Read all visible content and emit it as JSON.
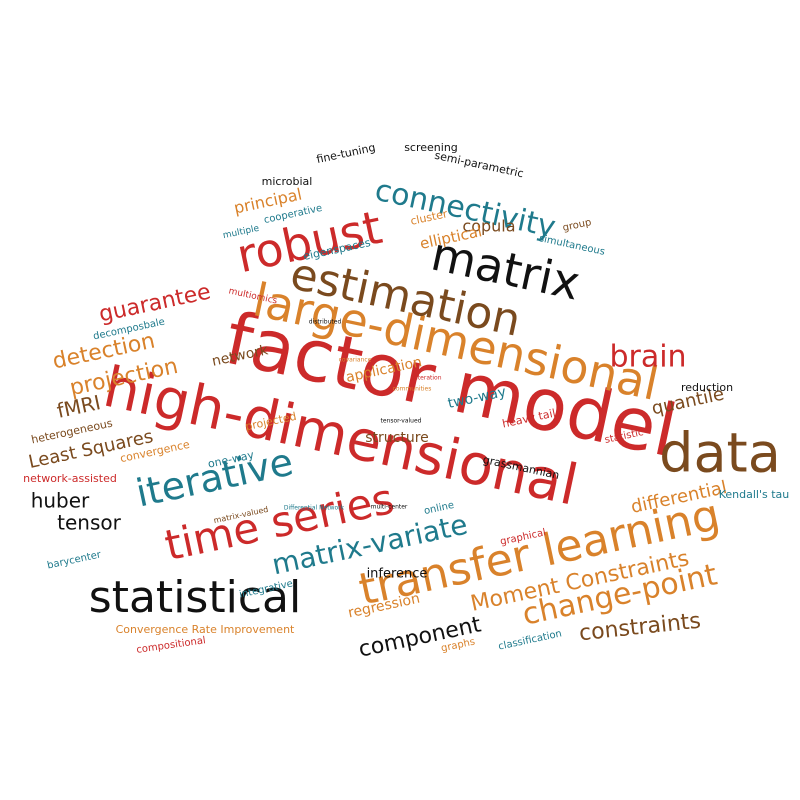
{
  "colors": {
    "red": "#cc2a2a",
    "orange": "#d9822b",
    "teal": "#1f7a8c",
    "black": "#111111",
    "brown": "#7a4a1e"
  },
  "words": [
    {
      "text": "factor model",
      "color": "red"
    },
    {
      "text": "high-dimensional",
      "color": "red"
    },
    {
      "text": "large-dimensional",
      "color": "orange"
    },
    {
      "text": "estimation",
      "color": "brown"
    },
    {
      "text": "matrix",
      "color": "black"
    },
    {
      "text": "robust",
      "color": "red"
    },
    {
      "text": "data",
      "color": "brown"
    },
    {
      "text": "transfer learning",
      "color": "orange"
    },
    {
      "text": "statistical",
      "color": "black"
    },
    {
      "text": "time series",
      "color": "red"
    },
    {
      "text": "iterative",
      "color": "teal"
    },
    {
      "text": "connectivity",
      "color": "teal"
    },
    {
      "text": "matrix-variate",
      "color": "teal"
    },
    {
      "text": "change-point",
      "color": "orange"
    },
    {
      "text": "brain",
      "color": "red"
    },
    {
      "text": "Moment Constraints",
      "color": "orange"
    },
    {
      "text": "component",
      "color": "black"
    },
    {
      "text": "constraints",
      "color": "brown"
    },
    {
      "text": "guarantee",
      "color": "red"
    },
    {
      "text": "detection",
      "color": "orange"
    },
    {
      "text": "projection",
      "color": "orange"
    },
    {
      "text": "fMRI",
      "color": "brown"
    },
    {
      "text": "Least Squares",
      "color": "brown"
    },
    {
      "text": "huber",
      "color": "black"
    },
    {
      "text": "tensor",
      "color": "black"
    },
    {
      "text": "quantile",
      "color": "brown"
    },
    {
      "text": "differential",
      "color": "orange"
    },
    {
      "text": "copula",
      "color": "brown"
    },
    {
      "text": "principal",
      "color": "orange"
    },
    {
      "text": "elliptical",
      "color": "orange"
    },
    {
      "text": "two-way",
      "color": "teal"
    },
    {
      "text": "application",
      "color": "orange"
    },
    {
      "text": "network",
      "color": "brown"
    },
    {
      "text": "structure",
      "color": "brown"
    },
    {
      "text": "regression",
      "color": "orange"
    },
    {
      "text": "inference",
      "color": "black"
    },
    {
      "text": "microbial",
      "color": "black"
    },
    {
      "text": "fine-tuning",
      "color": "black"
    },
    {
      "text": "screening",
      "color": "black"
    },
    {
      "text": "semi-parametric",
      "color": "black"
    },
    {
      "text": "cooperative",
      "color": "teal"
    },
    {
      "text": "multiple",
      "color": "teal"
    },
    {
      "text": "cluster",
      "color": "orange"
    },
    {
      "text": "group",
      "color": "brown"
    },
    {
      "text": "simultaneous",
      "color": "teal"
    },
    {
      "text": "eigenspaces",
      "color": "teal"
    },
    {
      "text": "multiomics",
      "color": "red"
    },
    {
      "text": "decomposbale",
      "color": "teal"
    },
    {
      "text": "distributed",
      "color": "black"
    },
    {
      "text": "covariance",
      "color": "orange"
    },
    {
      "text": "alteration",
      "color": "red"
    },
    {
      "text": "communities",
      "color": "orange"
    },
    {
      "text": "reduction",
      "color": "black"
    },
    {
      "text": "heterogeneous",
      "color": "brown"
    },
    {
      "text": "projected",
      "color": "orange"
    },
    {
      "text": "heavy tail",
      "color": "red"
    },
    {
      "text": "statistic",
      "color": "red"
    },
    {
      "text": "convergence",
      "color": "orange"
    },
    {
      "text": "tensor-valued",
      "color": "black"
    },
    {
      "text": "one-way",
      "color": "teal"
    },
    {
      "text": "grassmannian",
      "color": "black"
    },
    {
      "text": "network-assisted",
      "color": "red"
    },
    {
      "text": "matrix-valued",
      "color": "brown"
    },
    {
      "text": "Differential Network",
      "color": "teal"
    },
    {
      "text": "multi-center",
      "color": "black"
    },
    {
      "text": "online",
      "color": "teal"
    },
    {
      "text": "Kendall's tau",
      "color": "teal"
    },
    {
      "text": "graphical",
      "color": "red"
    },
    {
      "text": "barycenter",
      "color": "teal"
    },
    {
      "text": "integrative",
      "color": "teal"
    },
    {
      "text": "Convergence Rate Improvement",
      "color": "orange"
    },
    {
      "text": "compositional",
      "color": "red"
    },
    {
      "text": "graphs",
      "color": "orange"
    },
    {
      "text": "classification",
      "color": "teal"
    }
  ]
}
